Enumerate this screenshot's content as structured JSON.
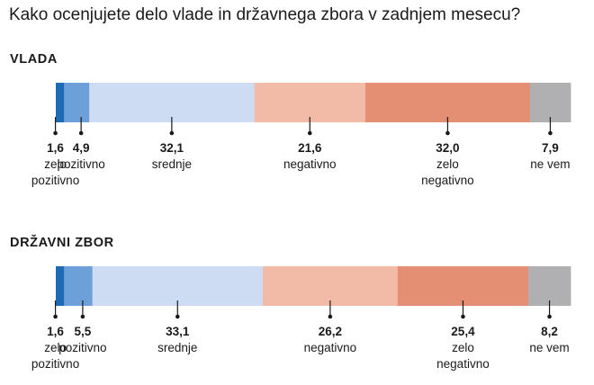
{
  "title": "Kako ocenjujete delo vlade in državnega zbora v zadnjem mesecu?",
  "colors": {
    "zelo_pozitivno": "#1e6ab5",
    "pozitivno": "#6d9fd8",
    "srednje": "#cddcf2",
    "negativno": "#f2bba7",
    "zelo_negativno": "#e48f74",
    "ne_vem": "#b0b0b2"
  },
  "chart_data": [
    {
      "type": "bar",
      "stacked": true,
      "orientation": "horizontal",
      "title": "VLADA",
      "categories": [
        [
          "zelo",
          "pozitivno"
        ],
        [
          "pozitivno"
        ],
        [
          "srednje"
        ],
        [
          "negativno"
        ],
        [
          "zelo",
          "negativno"
        ],
        [
          "ne vem"
        ]
      ],
      "values": [
        1.6,
        4.9,
        32.1,
        21.6,
        32.0,
        7.9
      ],
      "value_labels": [
        "1,6",
        "4,9",
        "32,1",
        "21,6",
        "32,0",
        "7,9"
      ],
      "xlim": [
        0,
        100
      ]
    },
    {
      "type": "bar",
      "stacked": true,
      "orientation": "horizontal",
      "title": "DRŽAVNI ZBOR",
      "categories": [
        [
          "zelo",
          "pozitivno"
        ],
        [
          "pozitivno"
        ],
        [
          "srednje"
        ],
        [
          "negativno"
        ],
        [
          "zelo",
          "negativno"
        ],
        [
          "ne vem"
        ]
      ],
      "values": [
        1.6,
        5.5,
        33.1,
        26.2,
        25.4,
        8.2
      ],
      "value_labels": [
        "1,6",
        "5,5",
        "33,1",
        "26,2",
        "25,4",
        "8,2"
      ],
      "xlim": [
        0,
        100
      ]
    }
  ]
}
